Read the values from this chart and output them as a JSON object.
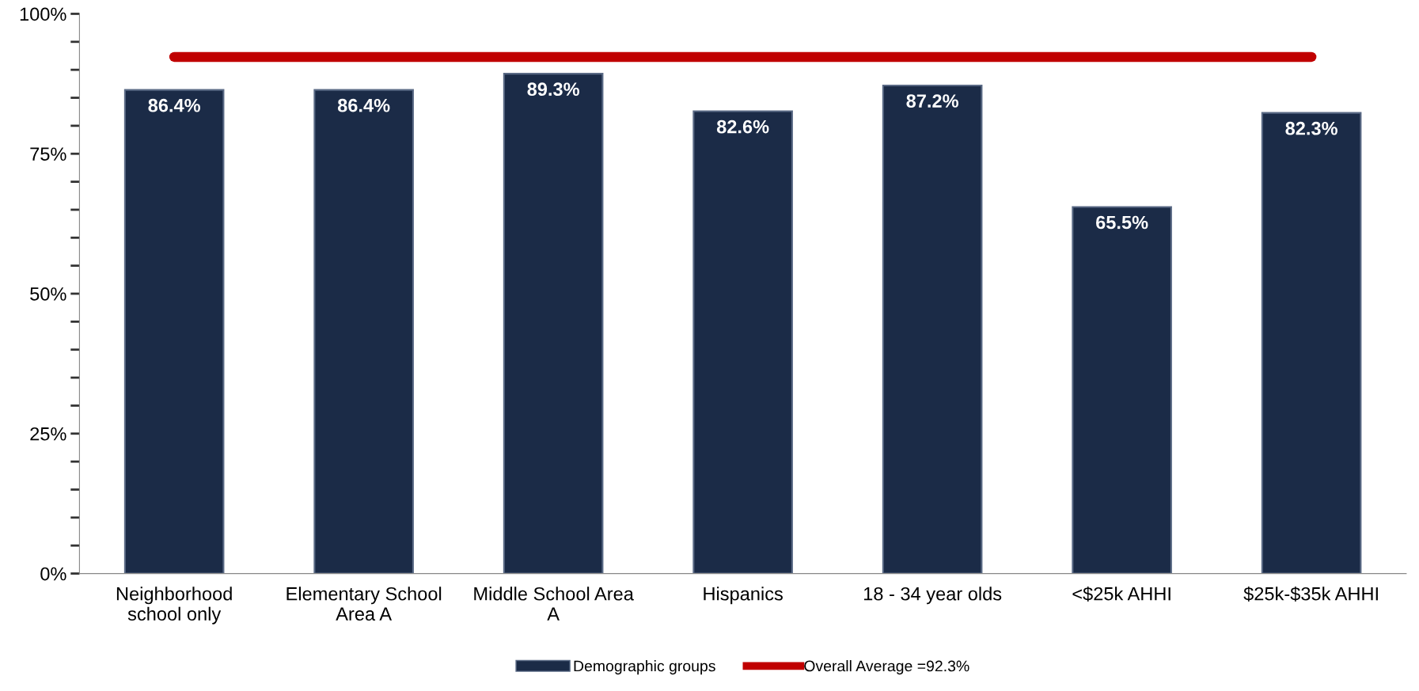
{
  "chart_data": {
    "type": "bar",
    "categories": [
      "Neighborhood\nschool only",
      "Elementary School\nArea A",
      "Middle School Area\nA",
      "Hispanics",
      "18 - 34 year olds",
      "<$25k AHHI",
      "$25k-$35k AHHI"
    ],
    "series": [
      {
        "name": "Demographic groups",
        "color": "#1b2b47",
        "values": [
          86.4,
          86.4,
          89.3,
          82.6,
          87.2,
          65.5,
          82.3
        ],
        "value_labels": [
          "86.4%",
          "86.4%",
          "89.3%",
          "82.6%",
          "87.2%",
          "65.5%",
          "82.3%"
        ]
      }
    ],
    "ylim": [
      0,
      100
    ],
    "yticks": [
      {
        "value": 0,
        "label": "0%"
      },
      {
        "value": 25,
        "label": "25%"
      },
      {
        "value": 50,
        "label": "50%"
      },
      {
        "value": 75,
        "label": "75%"
      },
      {
        "value": 100,
        "label": "100%"
      }
    ],
    "ref_lines": [
      {
        "axis": "y",
        "value": 92.3,
        "label": "Overall Average =92.3%",
        "color": "#c00000"
      }
    ],
    "grid": false,
    "legend": "bottom"
  }
}
